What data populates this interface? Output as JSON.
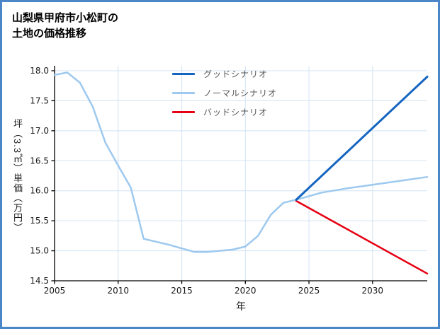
{
  "colors": {
    "page_border": "#4a86c8",
    "grid": "#d3e3f3",
    "axis": "#000000",
    "tick_label": "#1a1a1a",
    "legend_text": "#555555"
  },
  "chart_data": {
    "type": "line",
    "title": "山梨県甲府市小松町の\n土地の価格推移",
    "xlabel": "年",
    "ylabel": "坪（3.3㎡）単価（万円）",
    "xlim": [
      2005,
      2034.3
    ],
    "ylim": [
      14.5,
      18.0
    ],
    "xticks": [
      2005,
      2010,
      2015,
      2020,
      2025,
      2030
    ],
    "yticks": [
      14.5,
      15.0,
      15.5,
      16.0,
      16.5,
      17.0,
      17.5,
      18.0
    ],
    "grid": true,
    "legend_position": "upper center inside",
    "legend": [
      {
        "label": "グッドシナリオ",
        "color": "#1565c0"
      },
      {
        "label": "ノーマルシナリオ",
        "color": "#9ec9ef"
      },
      {
        "label": "バッドシナリオ",
        "color": "#e60012"
      }
    ],
    "series": [
      {
        "id": "history",
        "color": "#9ec9ef",
        "width": 2.5,
        "x": [
          2005,
          2006,
          2007,
          2008,
          2009,
          2010,
          2011,
          2012,
          2013,
          2014,
          2015,
          2016,
          2017,
          2018,
          2019,
          2020,
          2021,
          2022,
          2023,
          2024
        ],
        "y": [
          17.93,
          17.97,
          17.8,
          17.4,
          16.8,
          16.42,
          16.05,
          15.2,
          15.15,
          15.1,
          15.04,
          14.98,
          14.98,
          15.0,
          15.02,
          15.07,
          15.25,
          15.6,
          15.8,
          15.85
        ]
      },
      {
        "id": "normal-scenario",
        "color": "#9ec9ef",
        "width": 2.5,
        "x": [
          2024,
          2026,
          2028,
          2030,
          2032,
          2034.3
        ],
        "y": [
          15.85,
          15.97,
          16.04,
          16.1,
          16.16,
          16.23
        ]
      },
      {
        "id": "bad-scenario",
        "color": "#e60012",
        "width": 2.5,
        "x": [
          2024,
          2034.3
        ],
        "y": [
          15.83,
          14.62
        ]
      },
      {
        "id": "good-scenario",
        "color": "#1565c0",
        "width": 3,
        "x": [
          2024,
          2034.3
        ],
        "y": [
          15.85,
          17.9
        ]
      }
    ]
  }
}
